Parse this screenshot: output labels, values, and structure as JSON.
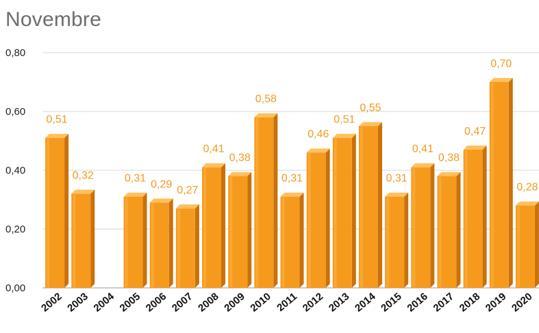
{
  "chart_data": {
    "type": "bar",
    "title": "Novembre",
    "xlabel": "",
    "ylabel": "",
    "ylim": [
      0,
      0.8
    ],
    "yticks": [
      "0,00",
      "0,20",
      "0,40",
      "0,60",
      "0,80"
    ],
    "grid": true,
    "bar_color": "#f59a1c",
    "label_color": "#f29a1e",
    "categories": [
      "2002",
      "2003",
      "2004",
      "2005",
      "2006",
      "2007",
      "2008",
      "2009",
      "2010",
      "2011",
      "2012",
      "2013",
      "2014",
      "2015",
      "2016",
      "2017",
      "2018",
      "2019",
      "2020"
    ],
    "values": [
      0.51,
      0.32,
      null,
      0.31,
      0.29,
      0.27,
      0.41,
      0.38,
      0.58,
      0.31,
      0.46,
      0.51,
      0.55,
      0.31,
      0.41,
      0.38,
      0.47,
      0.7,
      0.28
    ],
    "value_labels": [
      "0,51",
      "0,32",
      "",
      "0,31",
      "0,29",
      "0,27",
      "0,41",
      "0,38",
      "0,58",
      "0,31",
      "0,46",
      "0,51",
      "0,55",
      "0,31",
      "0,41",
      "0,38",
      "0,47",
      "0,70",
      "0,28"
    ]
  }
}
